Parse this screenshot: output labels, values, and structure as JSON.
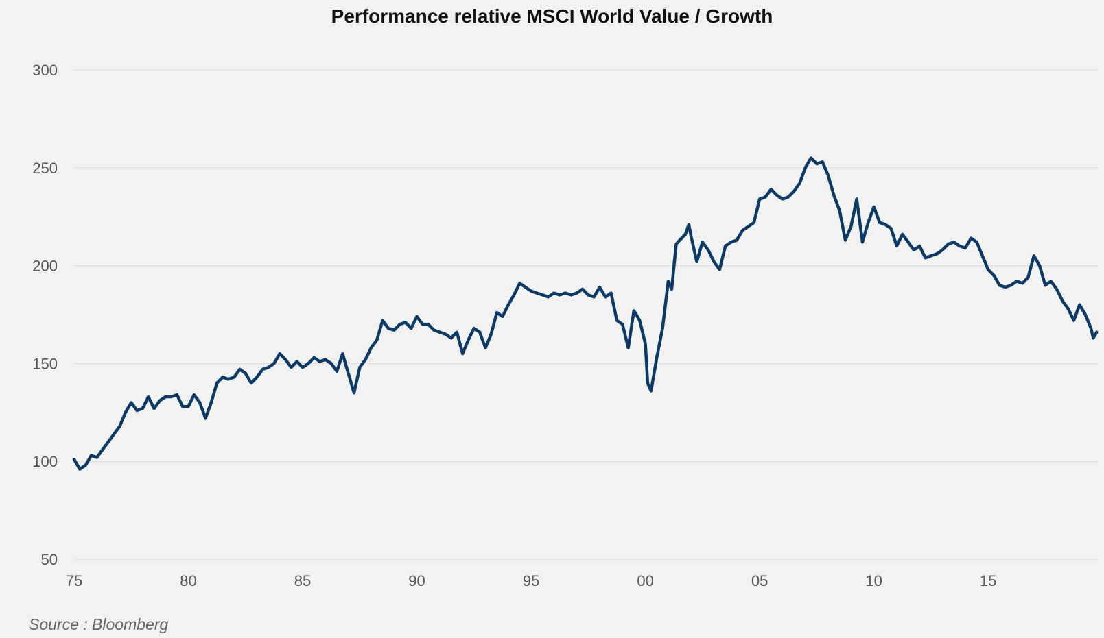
{
  "chart_data": {
    "type": "line",
    "title": "Performance relative MSCI World Value / Growth",
    "source": "Source : Bloomberg",
    "xlabel": "",
    "ylabel": "",
    "xlim": [
      1975,
      2019.8
    ],
    "ylim": [
      50,
      300
    ],
    "x_ticks": [
      {
        "value": 1975,
        "label": "75"
      },
      {
        "value": 1980,
        "label": "80"
      },
      {
        "value": 1985,
        "label": "85"
      },
      {
        "value": 1990,
        "label": "90"
      },
      {
        "value": 1995,
        "label": "95"
      },
      {
        "value": 2000,
        "label": "00"
      },
      {
        "value": 2005,
        "label": "05"
      },
      {
        "value": 2010,
        "label": "10"
      },
      {
        "value": 2015,
        "label": "15"
      }
    ],
    "y_ticks": [
      {
        "value": 300,
        "label": "300"
      },
      {
        "value": 250,
        "label": "250"
      },
      {
        "value": 200,
        "label": "200"
      },
      {
        "value": 150,
        "label": "150"
      },
      {
        "value": 100,
        "label": "100"
      },
      {
        "value": 50,
        "label": "50"
      }
    ],
    "grid": true,
    "colors": {
      "line": "#0b3a66",
      "grid": "#d9d9d9",
      "background": "#f2f2f3"
    },
    "series": [
      {
        "values": [
          [
            1975.0,
            101
          ],
          [
            1975.25,
            96
          ],
          [
            1975.5,
            98
          ],
          [
            1975.75,
            103
          ],
          [
            1976.0,
            102
          ],
          [
            1976.25,
            106
          ],
          [
            1976.5,
            110
          ],
          [
            1976.75,
            114
          ],
          [
            1977.0,
            118
          ],
          [
            1977.25,
            125
          ],
          [
            1977.5,
            130
          ],
          [
            1977.75,
            126
          ],
          [
            1978.0,
            127
          ],
          [
            1978.25,
            133
          ],
          [
            1978.5,
            127
          ],
          [
            1978.75,
            131
          ],
          [
            1979.0,
            133
          ],
          [
            1979.25,
            133
          ],
          [
            1979.5,
            134
          ],
          [
            1979.75,
            128
          ],
          [
            1980.0,
            128
          ],
          [
            1980.25,
            134
          ],
          [
            1980.5,
            130
          ],
          [
            1980.75,
            122
          ],
          [
            1981.0,
            130
          ],
          [
            1981.25,
            140
          ],
          [
            1981.5,
            143
          ],
          [
            1981.75,
            142
          ],
          [
            1982.0,
            143
          ],
          [
            1982.25,
            147
          ],
          [
            1982.5,
            145
          ],
          [
            1982.75,
            140
          ],
          [
            1983.0,
            143
          ],
          [
            1983.25,
            147
          ],
          [
            1983.5,
            148
          ],
          [
            1983.75,
            150
          ],
          [
            1984.0,
            155
          ],
          [
            1984.25,
            152
          ],
          [
            1984.5,
            148
          ],
          [
            1984.75,
            151
          ],
          [
            1985.0,
            148
          ],
          [
            1985.25,
            150
          ],
          [
            1985.5,
            153
          ],
          [
            1985.75,
            151
          ],
          [
            1986.0,
            152
          ],
          [
            1986.25,
            150
          ],
          [
            1986.5,
            146
          ],
          [
            1986.75,
            155
          ],
          [
            1987.0,
            145
          ],
          [
            1987.25,
            135
          ],
          [
            1987.5,
            148
          ],
          [
            1987.75,
            152
          ],
          [
            1988.0,
            158
          ],
          [
            1988.25,
            162
          ],
          [
            1988.5,
            172
          ],
          [
            1988.75,
            168
          ],
          [
            1989.0,
            167
          ],
          [
            1989.25,
            170
          ],
          [
            1989.5,
            171
          ],
          [
            1989.75,
            168
          ],
          [
            1990.0,
            174
          ],
          [
            1990.25,
            170
          ],
          [
            1990.5,
            170
          ],
          [
            1990.75,
            167
          ],
          [
            1991.0,
            166
          ],
          [
            1991.25,
            165
          ],
          [
            1991.5,
            163
          ],
          [
            1991.75,
            166
          ],
          [
            1992.0,
            155
          ],
          [
            1992.25,
            162
          ],
          [
            1992.5,
            168
          ],
          [
            1992.75,
            166
          ],
          [
            1993.0,
            158
          ],
          [
            1993.25,
            165
          ],
          [
            1993.5,
            176
          ],
          [
            1993.75,
            174
          ],
          [
            1994.0,
            180
          ],
          [
            1994.25,
            185
          ],
          [
            1994.5,
            191
          ],
          [
            1994.75,
            189
          ],
          [
            1995.0,
            187
          ],
          [
            1995.25,
            186
          ],
          [
            1995.5,
            185
          ],
          [
            1995.75,
            184
          ],
          [
            1996.0,
            186
          ],
          [
            1996.25,
            185
          ],
          [
            1996.5,
            186
          ],
          [
            1996.75,
            185
          ],
          [
            1997.0,
            186
          ],
          [
            1997.25,
            188
          ],
          [
            1997.5,
            185
          ],
          [
            1997.75,
            184
          ],
          [
            1998.0,
            189
          ],
          [
            1998.25,
            184
          ],
          [
            1998.5,
            186
          ],
          [
            1998.75,
            172
          ],
          [
            1999.0,
            170
          ],
          [
            1999.25,
            158
          ],
          [
            1999.5,
            177
          ],
          [
            1999.75,
            172
          ],
          [
            2000.0,
            160
          ],
          [
            2000.1,
            140
          ],
          [
            2000.25,
            136
          ],
          [
            2000.5,
            153
          ],
          [
            2000.75,
            168
          ],
          [
            2001.0,
            192
          ],
          [
            2001.15,
            188
          ],
          [
            2001.35,
            211
          ],
          [
            2001.5,
            213
          ],
          [
            2001.75,
            216
          ],
          [
            2001.9,
            221
          ],
          [
            2002.0,
            215
          ],
          [
            2002.25,
            202
          ],
          [
            2002.5,
            212
          ],
          [
            2002.75,
            208
          ],
          [
            2003.0,
            202
          ],
          [
            2003.25,
            198
          ],
          [
            2003.5,
            210
          ],
          [
            2003.75,
            212
          ],
          [
            2004.0,
            213
          ],
          [
            2004.25,
            218
          ],
          [
            2004.5,
            220
          ],
          [
            2004.75,
            222
          ],
          [
            2005.0,
            234
          ],
          [
            2005.25,
            235
          ],
          [
            2005.5,
            239
          ],
          [
            2005.75,
            236
          ],
          [
            2006.0,
            234
          ],
          [
            2006.25,
            235
          ],
          [
            2006.5,
            238
          ],
          [
            2006.75,
            242
          ],
          [
            2007.0,
            250
          ],
          [
            2007.25,
            255
          ],
          [
            2007.5,
            252
          ],
          [
            2007.75,
            253
          ],
          [
            2008.0,
            246
          ],
          [
            2008.25,
            236
          ],
          [
            2008.5,
            228
          ],
          [
            2008.75,
            213
          ],
          [
            2009.0,
            220
          ],
          [
            2009.25,
            234
          ],
          [
            2009.5,
            212
          ],
          [
            2009.75,
            222
          ],
          [
            2010.0,
            230
          ],
          [
            2010.25,
            222
          ],
          [
            2010.5,
            221
          ],
          [
            2010.75,
            219
          ],
          [
            2011.0,
            210
          ],
          [
            2011.25,
            216
          ],
          [
            2011.5,
            212
          ],
          [
            2011.75,
            208
          ],
          [
            2012.0,
            210
          ],
          [
            2012.25,
            204
          ],
          [
            2012.5,
            205
          ],
          [
            2012.75,
            206
          ],
          [
            2013.0,
            208
          ],
          [
            2013.25,
            211
          ],
          [
            2013.5,
            212
          ],
          [
            2013.75,
            210
          ],
          [
            2014.0,
            209
          ],
          [
            2014.25,
            214
          ],
          [
            2014.5,
            212
          ],
          [
            2014.75,
            205
          ],
          [
            2015.0,
            198
          ],
          [
            2015.25,
            195
          ],
          [
            2015.5,
            190
          ],
          [
            2015.75,
            189
          ],
          [
            2016.0,
            190
          ],
          [
            2016.25,
            192
          ],
          [
            2016.5,
            191
          ],
          [
            2016.75,
            194
          ],
          [
            2017.0,
            205
          ],
          [
            2017.25,
            200
          ],
          [
            2017.5,
            190
          ],
          [
            2017.75,
            192
          ],
          [
            2018.0,
            188
          ],
          [
            2018.25,
            182
          ],
          [
            2018.5,
            178
          ],
          [
            2018.75,
            172
          ],
          [
            2019.0,
            180
          ],
          [
            2019.25,
            175
          ],
          [
            2019.5,
            168
          ],
          [
            2019.6,
            163
          ],
          [
            2019.75,
            166
          ]
        ]
      }
    ]
  }
}
